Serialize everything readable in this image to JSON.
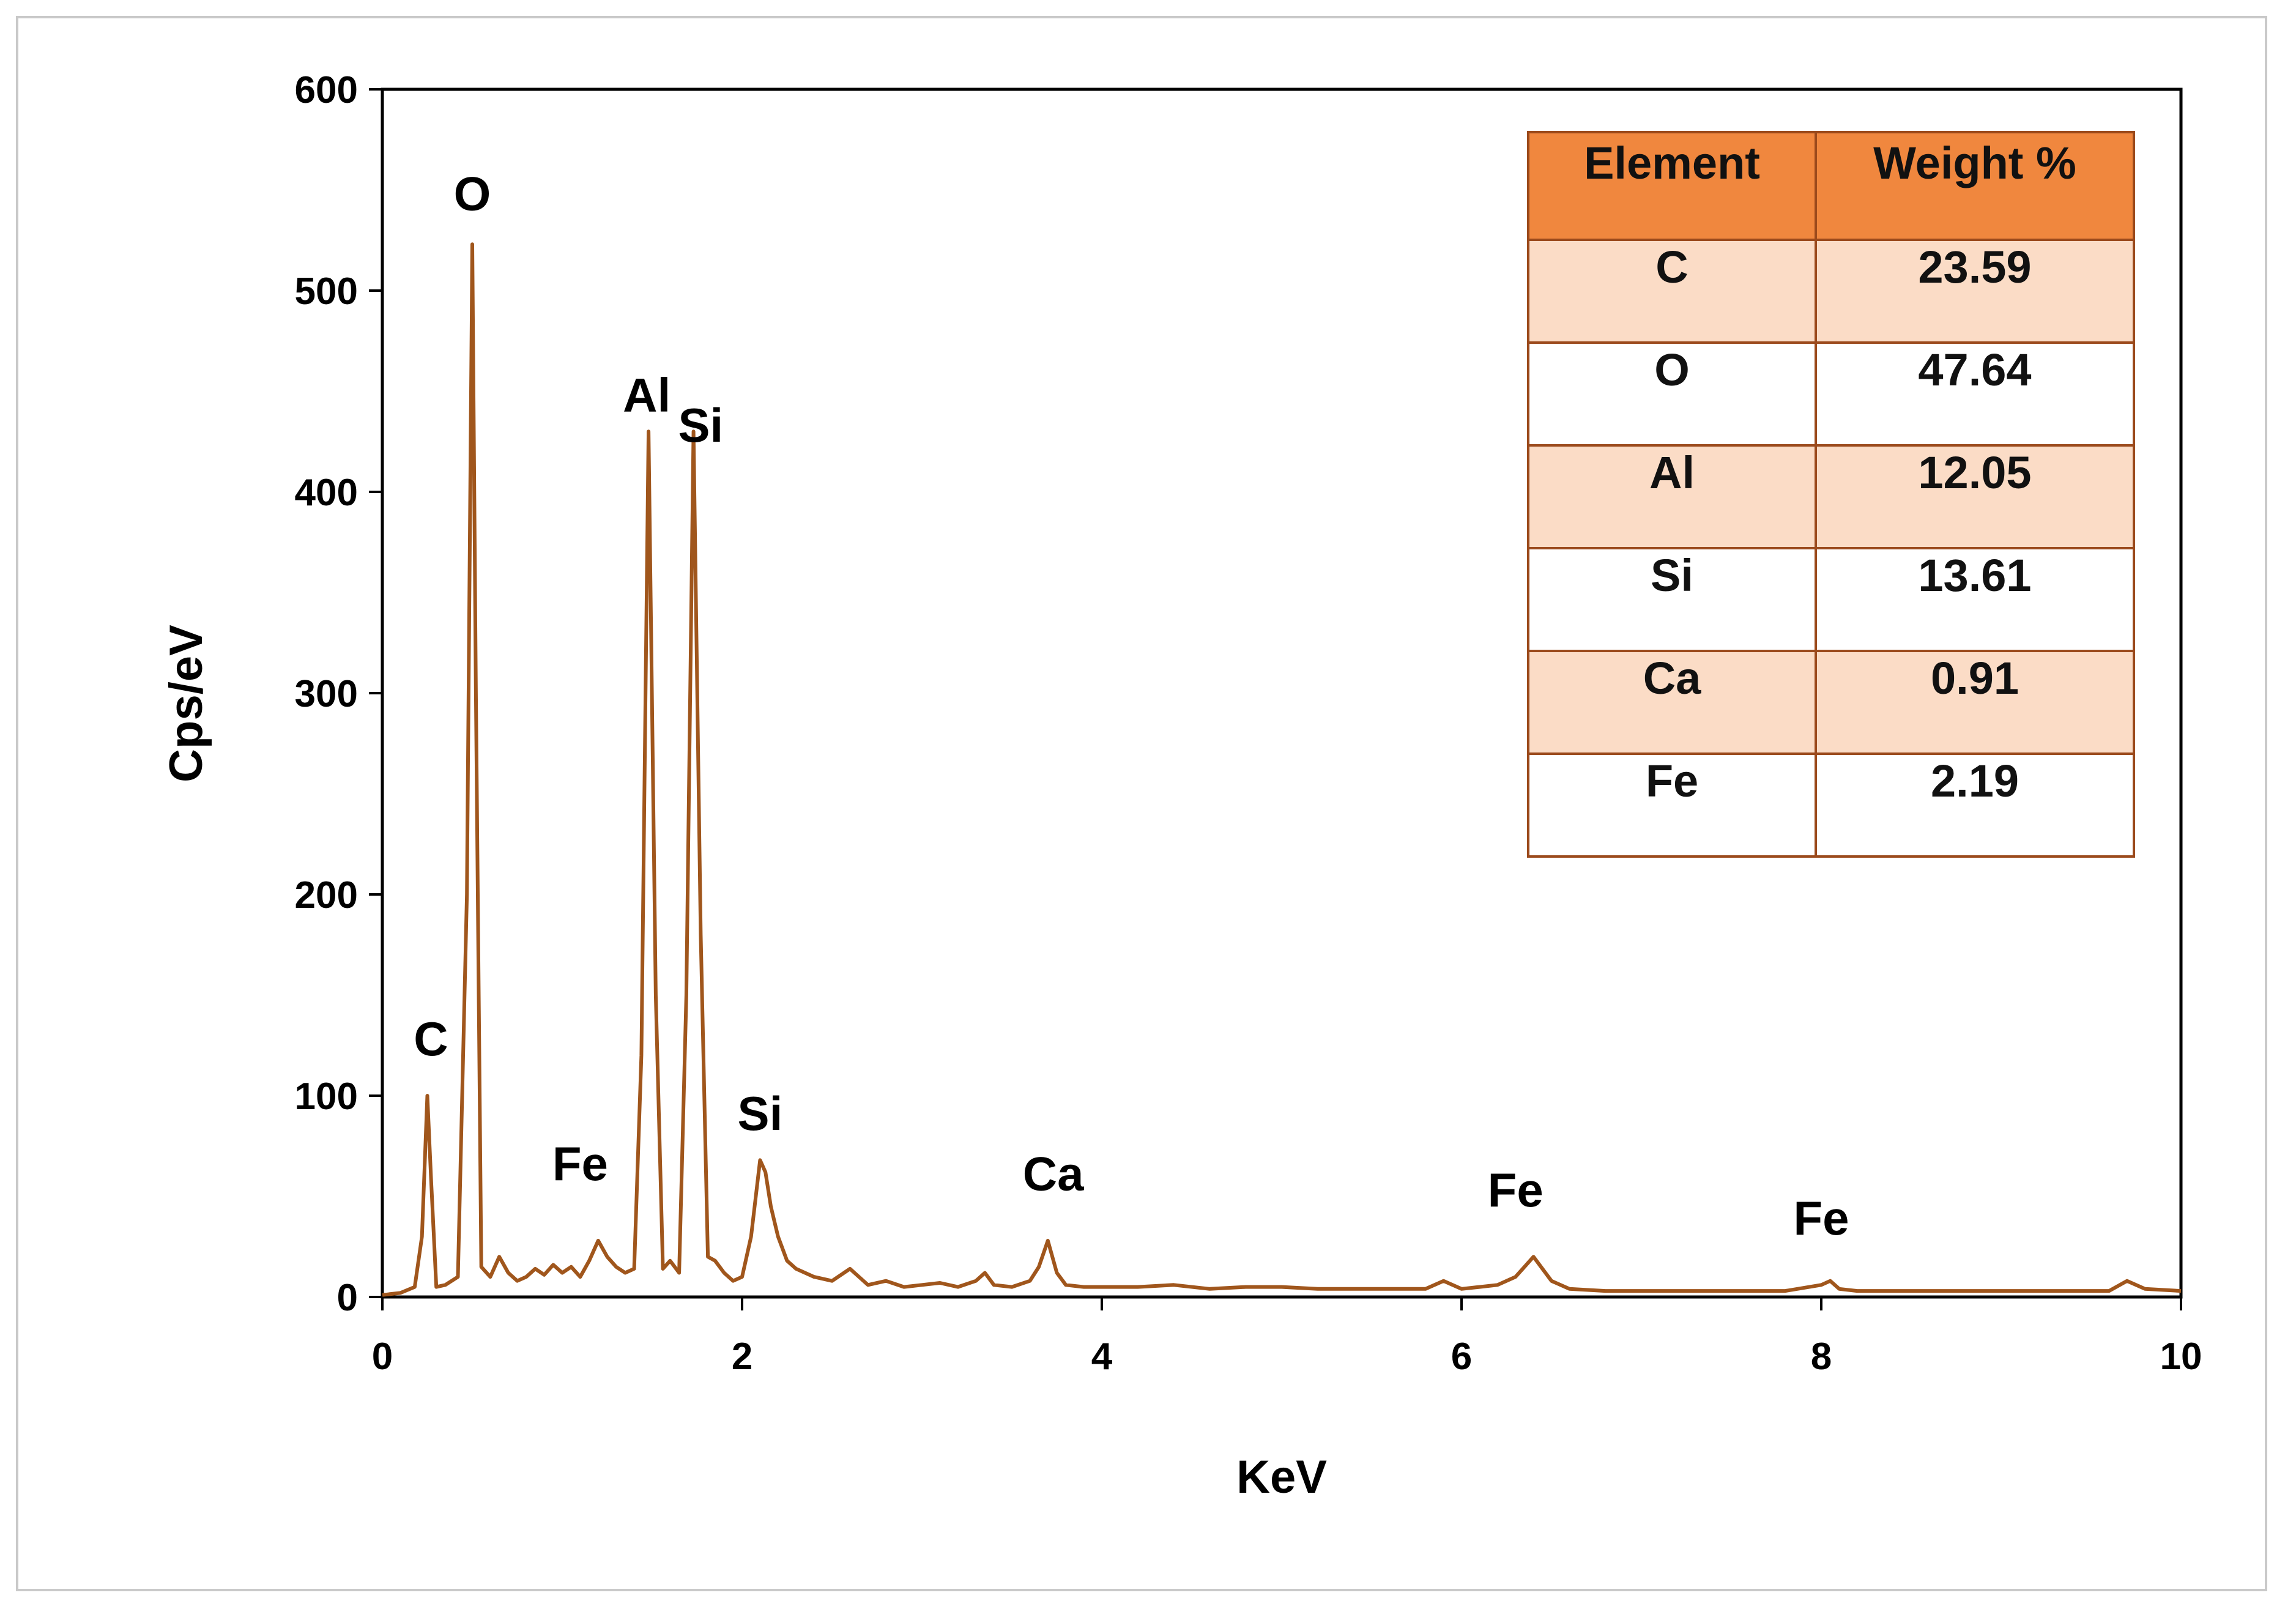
{
  "chart_data": {
    "type": "line",
    "title": "",
    "xlabel": "KeV",
    "ylabel": "Cps/eV",
    "xlim": [
      0,
      10
    ],
    "ylim": [
      0,
      600
    ],
    "xticks": [
      0,
      2,
      4,
      6,
      8,
      10
    ],
    "yticks": [
      0,
      100,
      200,
      300,
      400,
      500,
      600
    ],
    "grid": false,
    "series": [
      {
        "name": "EDX spectrum",
        "color": "#a0561c",
        "x": [
          0.0,
          0.1,
          0.18,
          0.22,
          0.25,
          0.27,
          0.3,
          0.35,
          0.42,
          0.47,
          0.5,
          0.52,
          0.55,
          0.6,
          0.65,
          0.7,
          0.75,
          0.8,
          0.85,
          0.9,
          0.95,
          1.0,
          1.05,
          1.1,
          1.15,
          1.2,
          1.25,
          1.3,
          1.35,
          1.4,
          1.44,
          1.48,
          1.52,
          1.56,
          1.6,
          1.65,
          1.69,
          1.73,
          1.77,
          1.81,
          1.85,
          1.9,
          1.95,
          2.0,
          2.05,
          2.1,
          2.13,
          2.16,
          2.2,
          2.25,
          2.3,
          2.4,
          2.5,
          2.6,
          2.7,
          2.8,
          2.9,
          3.0,
          3.1,
          3.2,
          3.3,
          3.35,
          3.4,
          3.5,
          3.6,
          3.65,
          3.7,
          3.75,
          3.8,
          3.9,
          4.0,
          4.2,
          4.4,
          4.6,
          4.8,
          5.0,
          5.2,
          5.4,
          5.6,
          5.8,
          5.9,
          6.0,
          6.1,
          6.2,
          6.3,
          6.35,
          6.4,
          6.45,
          6.5,
          6.6,
          6.8,
          7.0,
          7.2,
          7.4,
          7.6,
          7.8,
          8.0,
          8.05,
          8.1,
          8.2,
          8.4,
          8.6,
          8.8,
          9.0,
          9.2,
          9.4,
          9.6,
          9.7,
          9.8,
          10.0
        ],
        "y": [
          1,
          2,
          5,
          30,
          100,
          60,
          5,
          6,
          10,
          200,
          523,
          300,
          15,
          10,
          20,
          12,
          8,
          10,
          14,
          11,
          16,
          12,
          15,
          10,
          18,
          28,
          20,
          15,
          12,
          14,
          120,
          430,
          150,
          14,
          18,
          12,
          150,
          430,
          180,
          20,
          18,
          12,
          8,
          10,
          30,
          68,
          62,
          45,
          30,
          18,
          14,
          10,
          8,
          14,
          6,
          8,
          5,
          6,
          7,
          5,
          8,
          12,
          6,
          5,
          8,
          15,
          28,
          12,
          6,
          5,
          5,
          5,
          6,
          4,
          5,
          5,
          4,
          4,
          4,
          4,
          8,
          4,
          5,
          6,
          10,
          15,
          20,
          14,
          8,
          4,
          3,
          3,
          3,
          3,
          3,
          3,
          6,
          8,
          4,
          3,
          3,
          3,
          3,
          3,
          3,
          3,
          3,
          8,
          4,
          3
        ]
      }
    ],
    "annotations": [
      {
        "text": "C",
        "x": 0.27,
        "y": 120
      },
      {
        "text": "O",
        "x": 0.5,
        "y": 540
      },
      {
        "text": "Fe",
        "x": 1.1,
        "y": 58
      },
      {
        "text": "Al",
        "x": 1.47,
        "y": 440
      },
      {
        "text": "Si",
        "x": 1.77,
        "y": 425
      },
      {
        "text": "Si",
        "x": 2.1,
        "y": 83
      },
      {
        "text": "Ca",
        "x": 3.73,
        "y": 53
      },
      {
        "text": "Fe",
        "x": 6.3,
        "y": 45
      },
      {
        "text": "Fe",
        "x": 8.0,
        "y": 31
      }
    ],
    "table": {
      "header_color": "#f0873e",
      "band_color": "#fbdcc6",
      "columns": [
        "Element",
        "Weight %"
      ],
      "rows": [
        [
          "C",
          "23.59"
        ],
        [
          "O",
          "47.64"
        ],
        [
          "Al",
          "12.05"
        ],
        [
          "Si",
          "13.61"
        ],
        [
          "Ca",
          "0.91"
        ],
        [
          "Fe",
          "2.19"
        ]
      ]
    }
  }
}
